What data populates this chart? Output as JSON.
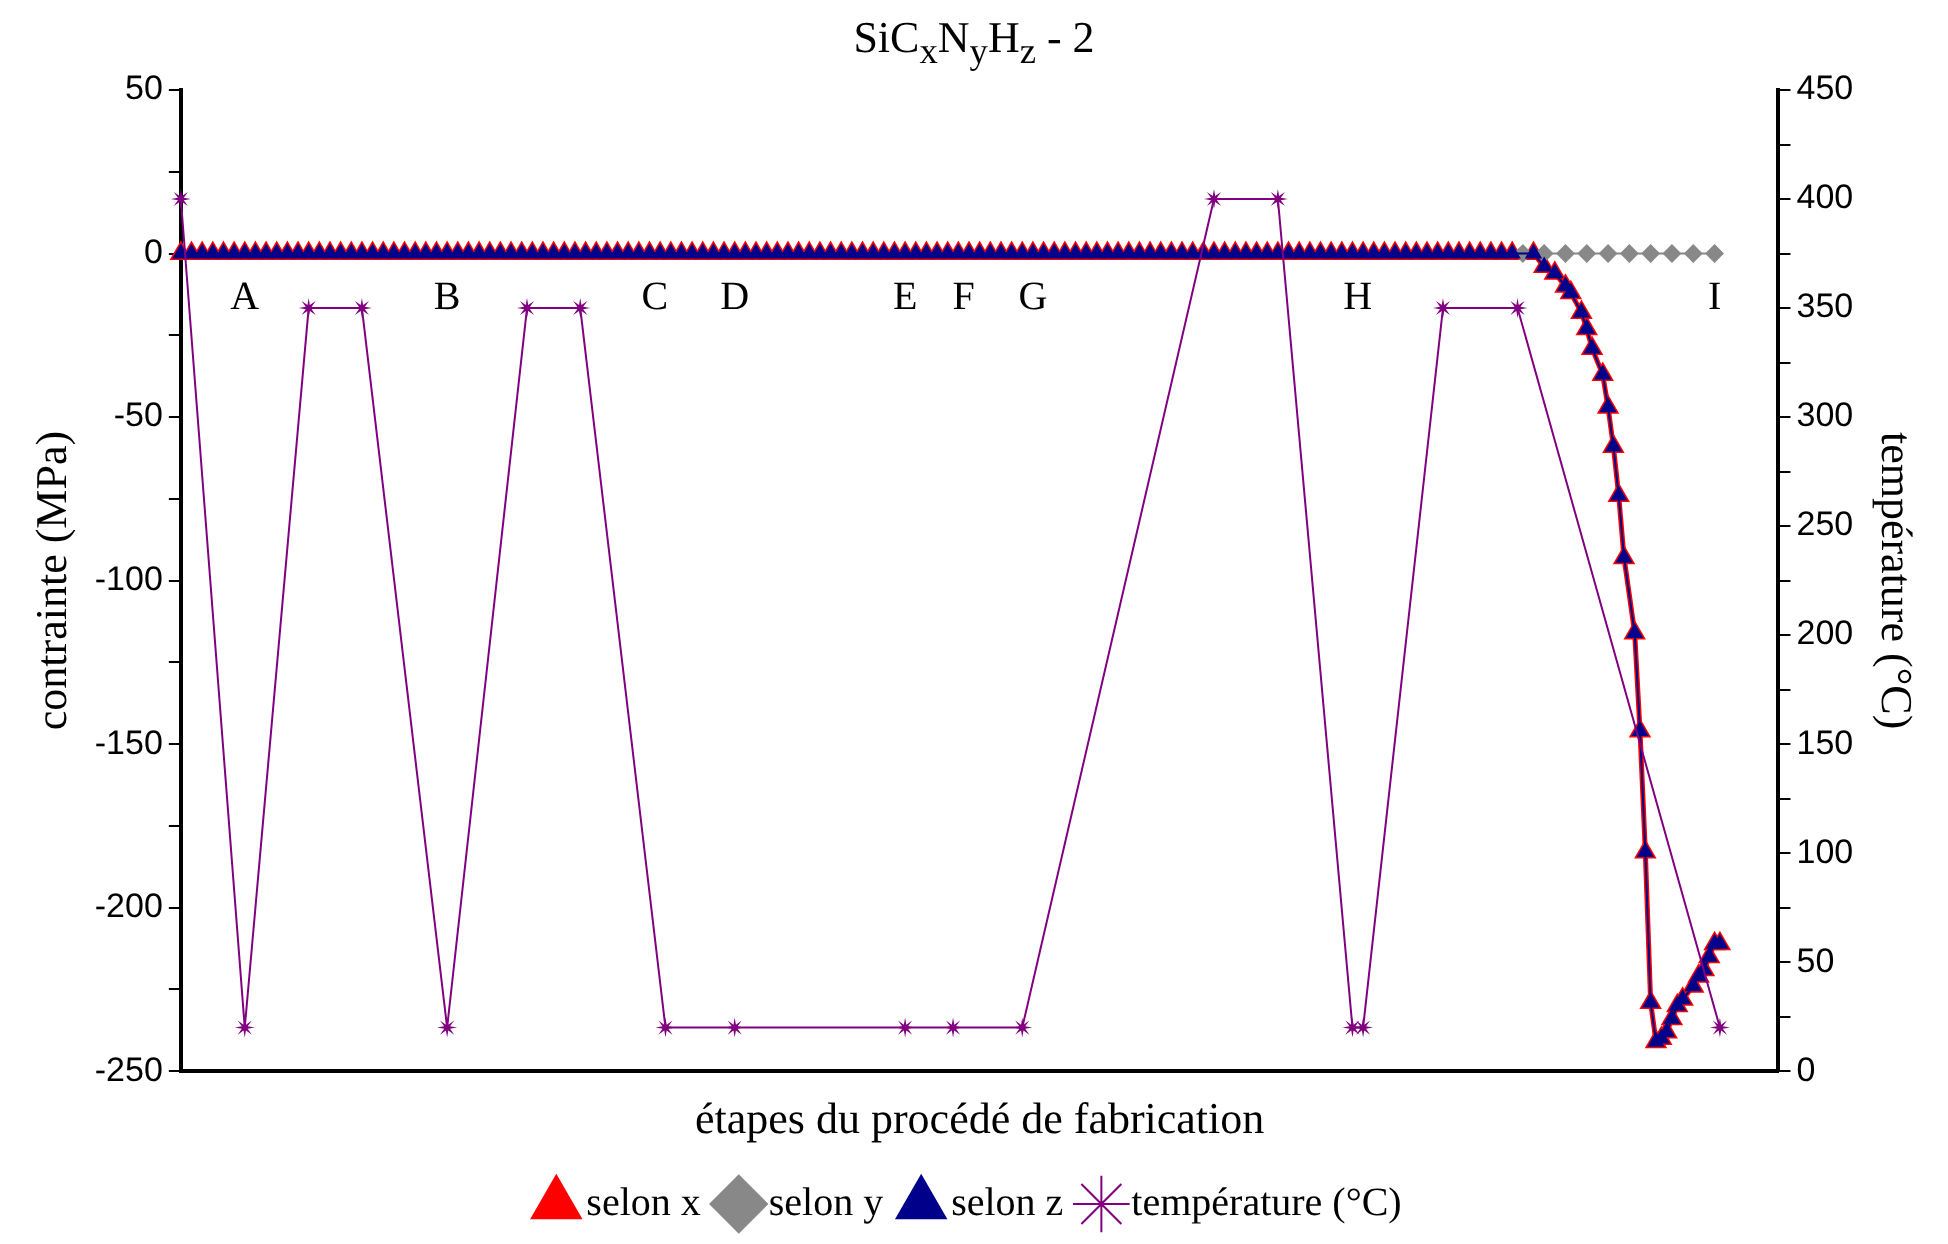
{
  "chart_data": {
    "type": "line",
    "title": "SiC$_{x}$N$_{y}$H$_{z}$ - 2",
    "xlabel": "étapes du procédé de fabrication",
    "ylabel": "contrainte (MPa)",
    "y2label": "température (°C)",
    "categories": [
      null,
      null,
      null,
      null,
      null,
      null,
      null,
      null,
      null,
      null,
      null,
      null,
      "A",
      null,
      null,
      null,
      null,
      null,
      null,
      null,
      null,
      null,
      null,
      null,
      null,
      null,
      null,
      null,
      null,
      null,
      null,
      null,
      null,
      null,
      null,
      null,
      null,
      null,
      null,
      null,
      null,
      null,
      null,
      null,
      null,
      null,
      null,
      null,
      null,
      null,
      "B",
      null,
      null,
      null,
      null,
      null,
      null,
      null,
      null,
      null,
      null,
      null,
      null,
      null,
      null,
      null,
      null,
      null,
      null,
      null,
      null,
      null,
      null,
      null,
      null,
      null,
      null,
      null,
      null,
      null,
      null,
      null,
      null,
      null,
      null,
      null,
      null,
      null,
      null,
      "C",
      null,
      null,
      null,
      null,
      null,
      null,
      null,
      null,
      null,
      null,
      null,
      null,
      null,
      null,
      "D",
      null,
      null,
      null,
      null,
      null,
      null,
      null,
      null,
      null,
      null,
      null,
      null,
      null,
      null,
      null,
      null,
      null,
      null,
      null,
      null,
      null,
      null,
      null,
      null,
      null,
      null,
      null,
      null,
      null,
      null,
      null,
      "E",
      null,
      null,
      null,
      null,
      null,
      null,
      null,
      null,
      null,
      null,
      "F",
      null,
      null,
      null,
      null,
      null,
      null,
      null,
      null,
      null,
      null,
      null,
      null,
      "G",
      null,
      null,
      null,
      null,
      null,
      null,
      null,
      null,
      null,
      null,
      null,
      null,
      null,
      null,
      null,
      null,
      null,
      null,
      null,
      null,
      null,
      null,
      null,
      null,
      null,
      null,
      null,
      null,
      null,
      null,
      null,
      null,
      null,
      null,
      null,
      null,
      null,
      null,
      null,
      null,
      null,
      null,
      null,
      null,
      null,
      null,
      null,
      null,
      null,
      null,
      null,
      null,
      null,
      null,
      null,
      null,
      null,
      null,
      null,
      null,
      "H",
      null,
      null,
      null,
      null,
      null,
      null,
      null,
      null,
      null,
      null,
      null,
      null,
      null,
      null,
      null,
      null,
      null,
      null,
      null,
      null,
      null,
      null,
      null,
      null,
      null,
      null,
      null,
      null,
      null,
      null,
      null,
      null,
      null,
      null,
      null,
      null,
      null,
      null,
      null,
      null,
      null,
      null,
      null,
      null,
      null,
      null,
      null,
      null,
      null,
      null,
      null,
      null,
      null,
      null,
      null,
      null,
      null,
      null,
      null,
      null,
      null,
      null,
      null,
      null,
      null,
      null,
      "I",
      null,
      null,
      null,
      null,
      null,
      null,
      null,
      null,
      null,
      null,
      null,
      null
    ],
    "series": [
      {
        "name": "selon x",
        "color": "#ff0000",
        "marker": "triangle",
        "values": [
          0,
          null,
          0,
          null,
          0,
          null,
          0,
          null,
          0,
          null,
          0,
          null,
          0,
          null,
          0,
          null,
          0,
          null,
          0,
          null,
          0,
          null,
          0,
          null,
          0,
          null,
          0,
          null,
          0,
          null,
          0,
          null,
          0,
          null,
          0,
          null,
          0,
          null,
          0,
          null,
          0,
          null,
          0,
          null,
          0,
          null,
          0,
          null,
          0,
          null,
          0,
          null,
          0,
          null,
          0,
          null,
          0,
          null,
          0,
          null,
          0,
          null,
          0,
          null,
          0,
          null,
          0,
          null,
          0,
          null,
          0,
          null,
          0,
          null,
          0,
          null,
          0,
          null,
          0,
          null,
          0,
          null,
          0,
          null,
          0,
          null,
          0,
          null,
          0,
          null,
          0,
          null,
          0,
          null,
          0,
          null,
          0,
          null,
          0,
          null,
          0,
          null,
          0,
          null,
          0,
          null,
          0,
          null,
          0,
          null,
          0,
          null,
          0,
          null,
          0,
          null,
          0,
          null,
          0,
          null,
          0,
          null,
          0,
          null,
          0,
          null,
          0,
          null,
          0,
          null,
          0,
          null,
          0,
          null,
          0,
          null,
          0,
          null,
          0,
          null,
          0,
          null,
          0,
          null,
          0,
          null,
          0,
          null,
          0,
          null,
          0,
          null,
          0,
          null,
          0,
          null,
          0,
          null,
          0,
          null,
          0,
          null,
          0,
          null,
          0,
          null,
          0,
          null,
          0,
          null,
          0,
          null,
          0,
          null,
          0,
          null,
          0,
          null,
          0,
          null,
          0,
          null,
          0,
          null,
          0,
          null,
          0,
          null,
          0,
          null,
          0,
          null,
          0,
          null,
          0,
          null,
          0,
          null,
          0,
          null,
          0,
          null,
          0,
          null,
          0,
          null,
          0,
          null,
          0,
          null,
          0,
          null,
          0,
          null,
          0,
          null,
          0,
          null,
          0,
          null,
          0,
          null,
          0,
          null,
          0,
          null,
          0,
          null,
          0,
          null,
          0,
          null,
          0,
          null,
          0,
          null,
          0,
          null,
          0,
          null,
          0,
          null,
          0,
          null,
          0,
          null,
          0,
          null,
          0,
          null,
          0,
          null,
          null,
          null,
          0,
          null,
          -4,
          null,
          -6,
          null,
          -10,
          -12,
          null,
          -18,
          -23,
          -29,
          null,
          -37,
          -47,
          -59,
          -74,
          -93,
          null,
          -116,
          -146,
          -183,
          -229,
          -241,
          -240,
          -238,
          -234,
          -230,
          -228,
          null,
          -224,
          -221,
          -219,
          -215,
          -211,
          -211,
          null,
          null,
          null,
          null,
          null,
          null,
          null,
          null,
          null,
          null,
          null
        ]
      },
      {
        "name": "selon y",
        "color": "#888888",
        "marker": "diamond",
        "values": [
          null,
          null,
          null,
          null,
          null,
          null,
          null,
          null,
          null,
          null,
          null,
          null,
          null,
          null,
          null,
          null,
          null,
          null,
          null,
          null,
          null,
          null,
          null,
          null,
          null,
          null,
          null,
          null,
          null,
          null,
          null,
          null,
          null,
          null,
          null,
          null,
          null,
          null,
          null,
          null,
          null,
          null,
          null,
          null,
          null,
          null,
          null,
          null,
          null,
          null,
          null,
          null,
          null,
          null,
          null,
          null,
          null,
          null,
          null,
          null,
          null,
          null,
          null,
          null,
          null,
          null,
          null,
          null,
          null,
          null,
          null,
          null,
          null,
          null,
          null,
          null,
          null,
          null,
          null,
          null,
          null,
          null,
          null,
          null,
          null,
          null,
          null,
          null,
          null,
          null,
          null,
          null,
          null,
          null,
          null,
          null,
          null,
          null,
          null,
          null,
          null,
          null,
          null,
          null,
          null,
          null,
          null,
          null,
          null,
          null,
          null,
          null,
          null,
          null,
          null,
          null,
          null,
          null,
          null,
          null,
          null,
          null,
          null,
          null,
          null,
          null,
          null,
          null,
          null,
          null,
          null,
          null,
          null,
          null,
          null,
          null,
          null,
          null,
          null,
          null,
          null,
          null,
          null,
          null,
          null,
          null,
          null,
          null,
          null,
          null,
          null,
          null,
          null,
          null,
          null,
          null,
          null,
          null,
          null,
          null,
          null,
          null,
          null,
          null,
          null,
          null,
          null,
          null,
          null,
          null,
          null,
          null,
          null,
          null,
          null,
          null,
          null,
          null,
          null,
          null,
          null,
          null,
          null,
          null,
          null,
          null,
          null,
          null,
          null,
          null,
          null,
          null,
          null,
          null,
          null,
          null,
          null,
          null,
          null,
          null,
          null,
          null,
          null,
          null,
          null,
          null,
          null,
          null,
          null,
          null,
          null,
          null,
          null,
          null,
          null,
          null,
          null,
          null,
          null,
          null,
          null,
          null,
          null,
          null,
          null,
          null,
          null,
          null,
          null,
          null,
          null,
          null,
          null,
          null,
          null,
          null,
          null,
          null,
          null,
          null,
          null,
          null,
          null,
          null,
          null,
          null,
          null,
          null,
          null,
          null,
          null,
          null,
          0,
          null,
          null,
          null,
          0,
          null,
          null,
          null,
          0,
          null,
          null,
          null,
          0,
          null,
          null,
          null,
          0,
          null,
          null,
          null,
          0,
          null,
          null,
          null,
          0,
          null,
          null,
          null,
          0,
          null,
          null,
          null,
          0,
          null,
          null,
          null,
          0,
          null,
          null,
          null,
          null,
          null,
          null,
          null,
          null,
          null,
          null,
          null,
          null
        ]
      },
      {
        "name": "selon z",
        "color": "#00008b",
        "marker": "triangle",
        "values": [
          0,
          null,
          0,
          null,
          0,
          null,
          0,
          null,
          0,
          null,
          0,
          null,
          0,
          null,
          0,
          null,
          0,
          null,
          0,
          null,
          0,
          null,
          0,
          null,
          0,
          null,
          0,
          null,
          0,
          null,
          0,
          null,
          0,
          null,
          0,
          null,
          0,
          null,
          0,
          null,
          0,
          null,
          0,
          null,
          0,
          null,
          0,
          null,
          0,
          null,
          0,
          null,
          0,
          null,
          0,
          null,
          0,
          null,
          0,
          null,
          0,
          null,
          0,
          null,
          0,
          null,
          0,
          null,
          0,
          null,
          0,
          null,
          0,
          null,
          0,
          null,
          0,
          null,
          0,
          null,
          0,
          null,
          0,
          null,
          0,
          null,
          0,
          null,
          0,
          null,
          0,
          null,
          0,
          null,
          0,
          null,
          0,
          null,
          0,
          null,
          0,
          null,
          0,
          null,
          0,
          null,
          0,
          null,
          0,
          null,
          0,
          null,
          0,
          null,
          0,
          null,
          0,
          null,
          0,
          null,
          0,
          null,
          0,
          null,
          0,
          null,
          0,
          null,
          0,
          null,
          0,
          null,
          0,
          null,
          0,
          null,
          0,
          null,
          0,
          null,
          0,
          null,
          0,
          null,
          0,
          null,
          0,
          null,
          0,
          null,
          0,
          null,
          0,
          null,
          0,
          null,
          0,
          null,
          0,
          null,
          0,
          null,
          0,
          null,
          0,
          null,
          0,
          null,
          0,
          null,
          0,
          null,
          0,
          null,
          0,
          null,
          0,
          null,
          0,
          null,
          0,
          null,
          0,
          null,
          0,
          null,
          0,
          null,
          0,
          null,
          0,
          null,
          0,
          null,
          0,
          null,
          0,
          null,
          0,
          null,
          0,
          null,
          0,
          null,
          0,
          null,
          0,
          null,
          0,
          null,
          0,
          null,
          0,
          null,
          0,
          null,
          0,
          null,
          0,
          null,
          0,
          null,
          0,
          null,
          0,
          null,
          0,
          null,
          0,
          null,
          0,
          null,
          0,
          null,
          0,
          null,
          0,
          null,
          0,
          null,
          0,
          null,
          0,
          null,
          0,
          null,
          0,
          null,
          0,
          null,
          0,
          null,
          null,
          null,
          0,
          null,
          -4,
          null,
          -6,
          null,
          -10,
          -12,
          null,
          -18,
          -23,
          -29,
          null,
          -37,
          -47,
          -59,
          -74,
          -93,
          null,
          -116,
          -146,
          -183,
          -229,
          -241,
          -240,
          -238,
          -234,
          -230,
          -228,
          null,
          -224,
          -221,
          -219,
          -215,
          -211,
          -211,
          null,
          null,
          null,
          null,
          null,
          null,
          null,
          null,
          null,
          null,
          null
        ]
      },
      {
        "name": "température (°C)",
        "color": "#800080",
        "marker": "star",
        "axis": "y2",
        "values": [
          400,
          null,
          null,
          null,
          null,
          null,
          null,
          null,
          null,
          null,
          null,
          null,
          20,
          null,
          null,
          null,
          null,
          null,
          null,
          null,
          null,
          null,
          null,
          null,
          350,
          null,
          null,
          null,
          null,
          null,
          null,
          null,
          null,
          null,
          350,
          null,
          null,
          null,
          null,
          null,
          null,
          null,
          null,
          null,
          null,
          null,
          null,
          null,
          null,
          null,
          20,
          null,
          null,
          null,
          null,
          null,
          null,
          null,
          null,
          null,
          null,
          null,
          null,
          null,
          null,
          350,
          null,
          null,
          null,
          null,
          null,
          null,
          null,
          null,
          null,
          350,
          null,
          null,
          null,
          null,
          null,
          null,
          null,
          null,
          null,
          null,
          null,
          null,
          null,
          null,
          null,
          20,
          null,
          null,
          null,
          null,
          null,
          null,
          null,
          null,
          null,
          null,
          null,
          null,
          20,
          null,
          null,
          null,
          null,
          null,
          null,
          null,
          null,
          null,
          null,
          null,
          null,
          null,
          null,
          null,
          null,
          null,
          null,
          null,
          null,
          null,
          null,
          null,
          null,
          null,
          null,
          null,
          null,
          null,
          null,
          null,
          20,
          null,
          null,
          null,
          null,
          null,
          null,
          null,
          null,
          20,
          null,
          null,
          null,
          null,
          null,
          null,
          null,
          null,
          null,
          null,
          null,
          null,
          20,
          null,
          null,
          null,
          null,
          null,
          null,
          null,
          null,
          null,
          null,
          null,
          null,
          null,
          null,
          null,
          null,
          null,
          null,
          null,
          null,
          null,
          null,
          null,
          null,
          null,
          null,
          null,
          null,
          null,
          null,
          null,
          null,
          null,
          null,
          null,
          400,
          null,
          null,
          null,
          null,
          null,
          null,
          null,
          null,
          null,
          null,
          null,
          400,
          null,
          null,
          null,
          null,
          null,
          null,
          null,
          null,
          null,
          null,
          null,
          null,
          null,
          20,
          null,
          20,
          null,
          null,
          null,
          null,
          null,
          null,
          null,
          null,
          null,
          null,
          null,
          null,
          null,
          null,
          350,
          null,
          null,
          null,
          null,
          null,
          null,
          null,
          null,
          null,
          null,
          null,
          null,
          null,
          350,
          null,
          null,
          null,
          null,
          null,
          null,
          null,
          null,
          null,
          null,
          null,
          null,
          null,
          null,
          null,
          null,
          null,
          null,
          null,
          null,
          null,
          null,
          null,
          null,
          null,
          null,
          null,
          null,
          null,
          null,
          null,
          null,
          null,
          null,
          null,
          null,
          null,
          20,
          null,
          null,
          null,
          null,
          null,
          null,
          null,
          null,
          null,
          null,
          null
        ]
      }
    ],
    "ylim": [
      -250,
      50
    ],
    "yticks": [
      -250,
      {
        "value": -225,
        "label": null
      },
      -200,
      {
        "value": -175,
        "label": null
      },
      -150,
      {
        "value": -125,
        "label": null
      },
      -100,
      {
        "value": -75,
        "label": null
      },
      -50,
      {
        "value": -25,
        "label": null
      },
      0,
      {
        "value": 25,
        "label": null
      },
      50
    ],
    "y2lim": [
      0,
      450
    ],
    "y2ticks": [
      0,
      {
        "value": 25,
        "label": null
      },
      50,
      {
        "value": 75,
        "label": null
      },
      100,
      {
        "value": 125,
        "label": null
      },
      150,
      {
        "value": 175,
        "label": null
      },
      200,
      {
        "value": 225,
        "label": null
      },
      250,
      {
        "value": 275,
        "label": null
      },
      300,
      {
        "value": 325,
        "label": null
      },
      350,
      {
        "value": 375,
        "label": null
      },
      400,
      {
        "value": 425,
        "label": null
      },
      450
    ],
    "legend": "bottom",
    "line_style": "solid"
  }
}
